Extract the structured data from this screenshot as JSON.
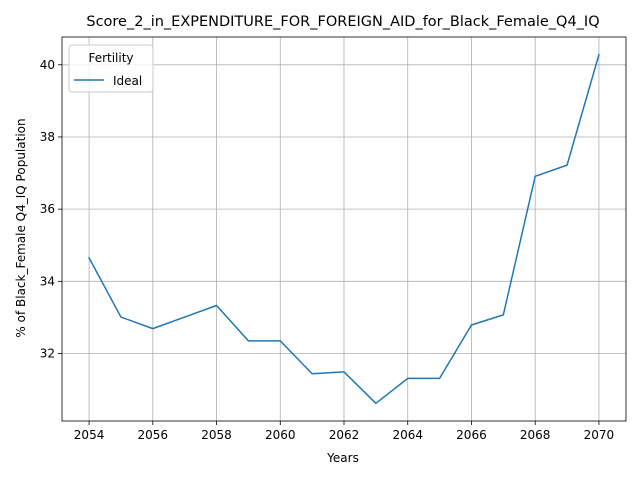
{
  "chart_data": {
    "type": "line",
    "title": "Score_2_in_EXPENDITURE_FOR_FOREIGN_AID_for_Black_Female_Q4_IQ",
    "xlabel": "Years",
    "ylabel": "% of Black_Female Q4_IQ Population",
    "x": [
      2054,
      2055,
      2056,
      2057,
      2058,
      2059,
      2060,
      2061,
      2062,
      2063,
      2064,
      2065,
      2066,
      2067,
      2068,
      2069,
      2070
    ],
    "series": [
      {
        "name": "Ideal",
        "color": "#1f77b4",
        "values": [
          34.65,
          33.01,
          32.69,
          33.01,
          33.33,
          32.35,
          32.35,
          31.44,
          31.49,
          30.62,
          31.31,
          31.31,
          32.79,
          33.07,
          36.91,
          37.22,
          40.28
        ]
      }
    ],
    "xlim": [
      2053.15,
      2070.85
    ],
    "ylim": [
      30.13,
      40.77
    ],
    "xticks": [
      2054,
      2056,
      2058,
      2060,
      2062,
      2064,
      2066,
      2068,
      2070
    ],
    "yticks": [
      32,
      34,
      36,
      38,
      40
    ],
    "grid": true,
    "legend": {
      "title": "Fertility",
      "placement": "upper-left"
    }
  }
}
